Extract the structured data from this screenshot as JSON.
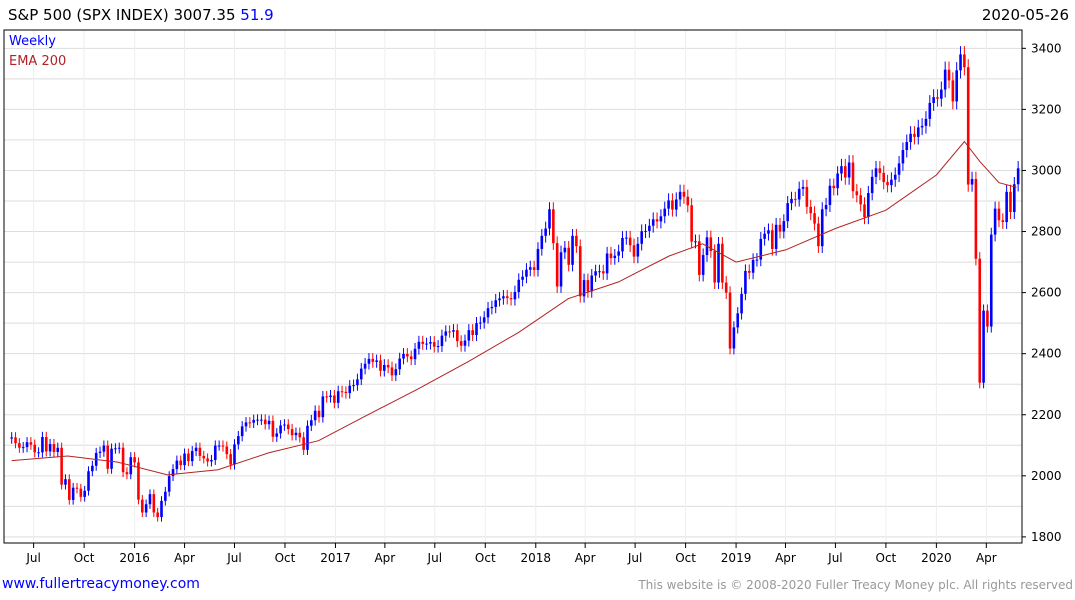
{
  "header": {
    "title": "S&P 500 (SPX INDEX) 3007.35",
    "change": "51.9",
    "date": "2020-05-26"
  },
  "footer": {
    "site": "www.fullertreacymoney.com",
    "copyright": "This website is © 2008-2020 Fuller Treacy Money plc. All rights reserved"
  },
  "colors": {
    "up": "#0000ff",
    "down": "#ff0000",
    "ema": "#b22222",
    "grid": "#dddddd"
  },
  "chart_data": {
    "type": "candlestick",
    "title": "S&P 500 (SPX INDEX)",
    "legend": [
      {
        "label": "Weekly",
        "color": "#0000ff"
      },
      {
        "label": "EMA 200",
        "color": "#b22222"
      }
    ],
    "legend_position": "top-left",
    "ylim": [
      1780,
      3460
    ],
    "yticks": [
      1800,
      2000,
      2200,
      2400,
      2600,
      2800,
      3000,
      3200,
      3400
    ],
    "xticks": [
      {
        "label": "Jul",
        "date": "2015-07-01"
      },
      {
        "label": "Oct",
        "date": "2015-10-01"
      },
      {
        "label": "2016",
        "date": "2016-01-01"
      },
      {
        "label": "Apr",
        "date": "2016-04-01"
      },
      {
        "label": "Jul",
        "date": "2016-07-01"
      },
      {
        "label": "Oct",
        "date": "2016-10-01"
      },
      {
        "label": "2017",
        "date": "2017-01-01"
      },
      {
        "label": "Apr",
        "date": "2017-04-01"
      },
      {
        "label": "Jul",
        "date": "2017-07-01"
      },
      {
        "label": "Oct",
        "date": "2017-10-01"
      },
      {
        "label": "2018",
        "date": "2018-01-01"
      },
      {
        "label": "Apr",
        "date": "2018-04-01"
      },
      {
        "label": "Jul",
        "date": "2018-07-01"
      },
      {
        "label": "Oct",
        "date": "2018-10-01"
      },
      {
        "label": "2019",
        "date": "2019-01-01"
      },
      {
        "label": "Apr",
        "date": "2019-04-01"
      },
      {
        "label": "Jul",
        "date": "2019-07-01"
      },
      {
        "label": "Oct",
        "date": "2019-10-01"
      },
      {
        "label": "2020",
        "date": "2020-01-01"
      },
      {
        "label": "Apr",
        "date": "2020-04-01"
      }
    ],
    "first_week": "2015-05-15",
    "x_range": [
      "2015-05-08",
      "2020-06-05"
    ],
    "weekly_close": [
      2122,
      2126,
      2107,
      2092,
      2094,
      2110,
      2102,
      2077,
      2077,
      2127,
      2080,
      2104,
      2078,
      2092,
      1971,
      1989,
      1921,
      1961,
      1958,
      1931,
      1951,
      2015,
      2033,
      2075,
      2079,
      2099,
      2023,
      2089,
      2090,
      2092,
      2012,
      2005,
      2061,
      2044,
      1922,
      1880,
      1907,
      1940,
      1880,
      1865,
      1918,
      1948,
      1999,
      2022,
      2050,
      2035,
      2073,
      2048,
      2081,
      2092,
      2065,
      2057,
      2047,
      2052,
      2099,
      2099,
      2096,
      2071,
      2037,
      2103,
      2130,
      2162,
      2175,
      2174,
      2183,
      2184,
      2184,
      2169,
      2180,
      2128,
      2139,
      2165,
      2168,
      2153,
      2133,
      2141,
      2126,
      2085,
      2164,
      2182,
      2213,
      2192,
      2260,
      2258,
      2263,
      2239,
      2277,
      2275,
      2271,
      2295,
      2297,
      2316,
      2351,
      2367,
      2383,
      2373,
      2378,
      2344,
      2363,
      2355,
      2329,
      2349,
      2384,
      2399,
      2391,
      2382,
      2416,
      2439,
      2432,
      2433,
      2438,
      2423,
      2425,
      2459,
      2473,
      2472,
      2477,
      2441,
      2426,
      2443,
      2477,
      2461,
      2500,
      2502,
      2519,
      2549,
      2553,
      2575,
      2581,
      2588,
      2582,
      2578,
      2602,
      2642,
      2652,
      2675,
      2683,
      2674,
      2743,
      2786,
      2810,
      2873,
      2762,
      2620,
      2732,
      2747,
      2691,
      2786,
      2752,
      2588,
      2641,
      2604,
      2656,
      2670,
      2670,
      2663,
      2728,
      2713,
      2721,
      2735,
      2779,
      2780,
      2755,
      2718,
      2760,
      2801,
      2802,
      2819,
      2840,
      2833,
      2850,
      2875,
      2902,
      2872,
      2905,
      2930,
      2914,
      2886,
      2767,
      2768,
      2658,
      2723,
      2781,
      2736,
      2633,
      2760,
      2633,
      2600,
      2417,
      2486,
      2532,
      2596,
      2671,
      2665,
      2707,
      2708,
      2776,
      2793,
      2804,
      2743,
      2822,
      2800,
      2834,
      2893,
      2907,
      2905,
      2940,
      2946,
      2881,
      2860,
      2826,
      2752,
      2873,
      2887,
      2950,
      2942,
      2990,
      3014,
      2977,
      3026,
      2932,
      2919,
      2889,
      2847,
      2926,
      2979,
      3007,
      2992,
      2962,
      2952,
      2970,
      2986,
      3023,
      3067,
      3093,
      3120,
      3110,
      3141,
      3146,
      3169,
      3221,
      3240,
      3235,
      3265,
      3330,
      3295,
      3226,
      3328,
      3380,
      3338,
      2954,
      2972,
      2711,
      2305,
      2541,
      2489,
      2790,
      2875,
      2837,
      2831,
      2930,
      2864,
      2955,
      3007
    ],
    "ema200": [
      {
        "date": "2015-05-22",
        "value": 2050
      },
      {
        "date": "2015-09-01",
        "value": 2065
      },
      {
        "date": "2015-12-01",
        "value": 2045
      },
      {
        "date": "2016-03-01",
        "value": 2003
      },
      {
        "date": "2016-06-01",
        "value": 2020
      },
      {
        "date": "2016-09-01",
        "value": 2075
      },
      {
        "date": "2016-12-01",
        "value": 2115
      },
      {
        "date": "2017-03-01",
        "value": 2200
      },
      {
        "date": "2017-06-01",
        "value": 2285
      },
      {
        "date": "2017-09-01",
        "value": 2375
      },
      {
        "date": "2017-12-01",
        "value": 2470
      },
      {
        "date": "2018-03-01",
        "value": 2580
      },
      {
        "date": "2018-06-01",
        "value": 2635
      },
      {
        "date": "2018-09-01",
        "value": 2720
      },
      {
        "date": "2018-11-01",
        "value": 2760
      },
      {
        "date": "2019-01-01",
        "value": 2700
      },
      {
        "date": "2019-04-01",
        "value": 2740
      },
      {
        "date": "2019-07-01",
        "value": 2810
      },
      {
        "date": "2019-10-01",
        "value": 2870
      },
      {
        "date": "2020-01-01",
        "value": 2985
      },
      {
        "date": "2020-02-21",
        "value": 3095
      },
      {
        "date": "2020-03-20",
        "value": 3030
      },
      {
        "date": "2020-04-24",
        "value": 2960
      },
      {
        "date": "2020-05-26",
        "value": 2945
      }
    ]
  }
}
